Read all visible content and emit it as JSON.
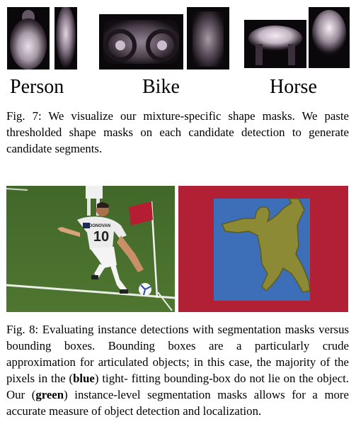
{
  "fig7": {
    "labels": [
      "Person",
      "Bike",
      "Horse"
    ],
    "caption": "Fig. 7: We visualize our mixture-specific shape masks. We paste thresholded shape masks on each candidate detection to generate candidate segments."
  },
  "fig8": {
    "jersey_name": "DONOVAN",
    "jersey_number": "10",
    "caption_lines": [
      "Fig. 8: Evaluating instance detections with segmentation",
      "masks versus bounding boxes. Bounding boxes are a",
      "particularly crude approximation for articulated objects;",
      "in this case, the majority of the pixels in the ("
    ],
    "blue_word": "blue",
    "tight_prefix": ") tight-",
    "line5": "fitting bounding-box do not lie on the object. Our (",
    "green_word": "green",
    "line6_pre": ")",
    "line6": "instance-level segmentation masks allows for a more",
    "line7": "accurate measure of object detection and localization.",
    "colors": {
      "mask_background": "#000000",
      "panel_red": "#b22035",
      "bbox_blue": "#3d6fb8",
      "segment_green": "#8c8a34",
      "grass": "#4a6e2a"
    }
  }
}
